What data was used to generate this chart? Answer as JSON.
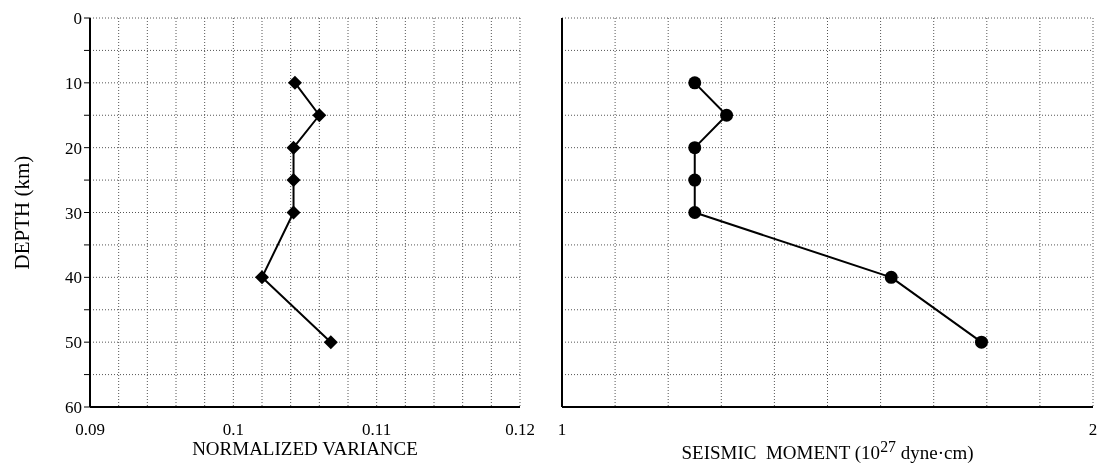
{
  "chart_data": [
    {
      "type": "line",
      "xlabel": "NORMALIZED VARIANCE",
      "ylabel": "DEPTH (km)",
      "marker": "diamond",
      "line_style": "solid",
      "grid": true,
      "series": [
        {
          "color": "#000000",
          "x": [
            0.1043,
            0.106,
            0.1042,
            0.1042,
            0.1042,
            0.102,
            0.1068
          ],
          "values": [
            10,
            15,
            20,
            25,
            30,
            40,
            50
          ]
        }
      ],
      "xlim": [
        0.09,
        0.12
      ],
      "xticks": [
        0.09,
        {
          "value": 0.092,
          "label": null
        },
        {
          "value": 0.094,
          "label": null
        },
        {
          "value": 0.096,
          "label": null
        },
        {
          "value": 0.098,
          "label": null
        },
        0.1,
        {
          "value": 0.102,
          "label": null
        },
        {
          "value": 0.104,
          "label": null
        },
        {
          "value": 0.106,
          "label": null
        },
        {
          "value": 0.108,
          "label": null
        },
        0.11,
        {
          "value": 0.112,
          "label": null
        },
        {
          "value": 0.114,
          "label": null
        },
        {
          "value": 0.116,
          "label": null
        },
        {
          "value": 0.118,
          "label": null
        },
        0.12
      ],
      "ylim": [
        60,
        0
      ],
      "yticks": [
        0,
        {
          "value": 5,
          "label": null
        },
        10,
        {
          "value": 15,
          "label": null
        },
        20,
        {
          "value": 25,
          "label": null
        },
        30,
        {
          "value": 35,
          "label": null
        },
        40,
        {
          "value": 45,
          "label": null
        },
        50,
        {
          "value": 55,
          "label": null
        },
        60
      ]
    },
    {
      "type": "line",
      "xlabel": "SEISMIC  MOMENT (10$^{27}$ dyne·cm)",
      "marker": "circle",
      "line_style": "solid",
      "grid": true,
      "tick_labels": "x",
      "series": [
        {
          "color": "#000000",
          "x": [
            1.25,
            1.31,
            1.25,
            1.25,
            1.25,
            1.62,
            1.79
          ],
          "values": [
            10,
            15,
            20,
            25,
            30,
            40,
            50
          ]
        }
      ],
      "xlim": [
        1,
        2
      ],
      "xticks": [
        1,
        {
          "value": 1.1,
          "label": null
        },
        {
          "value": 1.2,
          "label": null
        },
        {
          "value": 1.3,
          "label": null
        },
        {
          "value": 1.4,
          "label": null
        },
        {
          "value": 1.5,
          "label": null
        },
        {
          "value": 1.6,
          "label": null
        },
        {
          "value": 1.7,
          "label": null
        },
        {
          "value": 1.8,
          "label": null
        },
        {
          "value": 1.9,
          "label": null
        },
        2
      ],
      "ylim": [
        60,
        0
      ],
      "yticks": [
        0,
        {
          "value": 5,
          "label": null
        },
        10,
        {
          "value": 15,
          "label": null
        },
        20,
        {
          "value": 25,
          "label": null
        },
        30,
        {
          "value": 35,
          "label": null
        },
        40,
        {
          "value": 45,
          "label": null
        },
        50,
        {
          "value": 55,
          "label": null
        },
        60
      ]
    }
  ]
}
